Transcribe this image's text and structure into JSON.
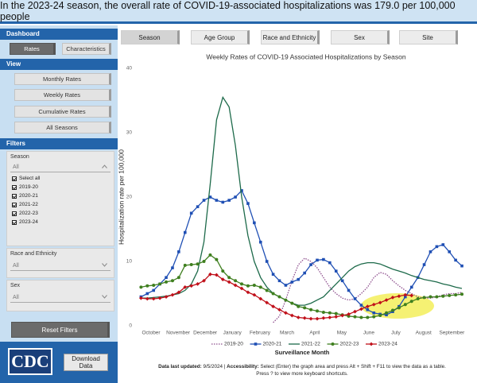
{
  "banner": "In the 2023-24 season, the overall rate of COVID-19-associated hospitalizations was 179.0 per 100,000 people",
  "sidebar": {
    "dashboard": {
      "title": "Dashboard",
      "buttons": [
        "Rates",
        "Characteristics"
      ]
    },
    "view": {
      "title": "View",
      "buttons": [
        "Monthly Rates",
        "Weekly Rates",
        "Cumulative Rates",
        "All Seasons"
      ]
    },
    "filters": {
      "title": "Filters",
      "season": {
        "label": "Season",
        "selected": "All",
        "options": [
          "Select all",
          "2019-20",
          "2020-21",
          "2021-22",
          "2022-23",
          "2023-24"
        ]
      },
      "race": {
        "label": "Race and Ethnicity",
        "selected": "All"
      },
      "sex": {
        "label": "Sex",
        "selected": "All"
      },
      "reset": "Reset Filters"
    },
    "logo": "CDC",
    "download": "Download Data"
  },
  "tabs": [
    "Season",
    "Age Group",
    "Race and Ethnicity",
    "Sex",
    "Site"
  ],
  "chart_data": {
    "type": "line",
    "title": "Weekly Rates of COVID-19 Associated Hospitalizations by Season",
    "y_label": "Hospitalization rate per 100,000",
    "x_label": "Surveillance Month",
    "xlim": [
      -0.3,
      51.5
    ],
    "xticks": [
      {
        "value": 1.6,
        "label": "October"
      },
      {
        "value": 5.9,
        "label": "November"
      },
      {
        "value": 10.2,
        "label": "December"
      },
      {
        "value": 14.5,
        "label": "January"
      },
      {
        "value": 18.9,
        "label": "February"
      },
      {
        "value": 23.2,
        "label": "March"
      },
      {
        "value": 27.6,
        "label": "April"
      },
      {
        "value": 31.9,
        "label": "May"
      },
      {
        "value": 36.2,
        "label": "June"
      },
      {
        "value": 40.5,
        "label": "July"
      },
      {
        "value": 44.9,
        "label": "August"
      },
      {
        "value": 49.4,
        "label": "September"
      }
    ],
    "ylim": [
      0,
      40
    ],
    "yticks": [
      0,
      10,
      20,
      30,
      40
    ],
    "series": [
      {
        "name": "2019-20",
        "color": "#8e4f8e",
        "line_style": "dotted",
        "values": [
          null,
          null,
          null,
          null,
          null,
          null,
          null,
          null,
          null,
          null,
          null,
          null,
          null,
          null,
          null,
          null,
          null,
          null,
          null,
          null,
          null,
          0.5,
          1.5,
          4,
          7,
          9.5,
          10.5,
          10,
          9,
          7.5,
          6,
          5,
          4.3,
          4,
          4.2,
          5,
          6,
          7.5,
          8.3,
          8,
          7,
          6.2,
          5.5,
          5,
          4.5,
          4.3,
          4.3,
          4.5,
          4.8,
          5,
          5,
          5.2
        ]
      },
      {
        "name": "2020-21",
        "color": "#1f4fb4",
        "marker": "square",
        "values": [
          4.5,
          5,
          5.5,
          6.5,
          7.5,
          9,
          11.5,
          14.5,
          17.5,
          18.5,
          19.5,
          20,
          19.5,
          19.2,
          19.5,
          20,
          21,
          19,
          16,
          13,
          10,
          8,
          7,
          6.3,
          6.8,
          7.2,
          8.2,
          9.5,
          10.2,
          10.3,
          9.8,
          8.5,
          7,
          5.5,
          4.2,
          3.2,
          2.5,
          2,
          1.8,
          1.7,
          2.2,
          3,
          4.5,
          6,
          7.5,
          9.5,
          11.5,
          12.3,
          12.6,
          11.5,
          10.2,
          9.3
        ]
      },
      {
        "name": "2021-22",
        "color": "#1d6a4a",
        "values": [
          4.3,
          4.3,
          4.4,
          4.5,
          4.6,
          4.8,
          5,
          5.5,
          6.5,
          8.5,
          13,
          22,
          32,
          35.5,
          34,
          28,
          20,
          14,
          10,
          7.5,
          6,
          5,
          4.5,
          4,
          3.5,
          3.2,
          3.2,
          3.5,
          4,
          4.5,
          5.5,
          6.5,
          7.5,
          8.5,
          9.2,
          9.6,
          9.8,
          9.8,
          9.6,
          9.2,
          8.8,
          8.5,
          8.2,
          7.8,
          7.5,
          7.2,
          7,
          6.8,
          6.5,
          6.3,
          6,
          5.8
        ]
      },
      {
        "name": "2022-23",
        "color": "#3f7f1f",
        "marker": "circle",
        "values": [
          6,
          6.2,
          6.3,
          6.5,
          6.8,
          7,
          7.5,
          9.4,
          9.5,
          9.6,
          10,
          11,
          10.3,
          8.5,
          7.5,
          7,
          6.5,
          6.2,
          6.3,
          6,
          5.5,
          5,
          4.5,
          4,
          3.5,
          3,
          2.8,
          2.5,
          2.3,
          2.1,
          2,
          1.9,
          1.7,
          1.5,
          1.4,
          1.3,
          1.3,
          1.4,
          1.6,
          2,
          2.4,
          2.8,
          3.3,
          3.8,
          4.2,
          4.4,
          4.5,
          4.5,
          4.6,
          4.7,
          4.8,
          4.9
        ]
      },
      {
        "name": "2023-24",
        "color": "#c0101a",
        "marker": "diamond",
        "values": [
          4.3,
          4.2,
          4.2,
          4.3,
          4.5,
          4.8,
          5.2,
          6,
          6.2,
          6.5,
          7,
          8,
          7.9,
          7.2,
          6.8,
          6.3,
          5.8,
          5.2,
          4.8,
          4.2,
          3.6,
          3,
          2.5,
          2,
          1.6,
          1.3,
          1.2,
          1.1,
          1.1,
          1.2,
          1.3,
          1.4,
          1.6,
          1.8,
          2.2,
          2.6,
          3,
          3.3,
          3.6,
          4,
          4.4,
          4.6,
          4.8,
          4.7,
          null,
          null,
          null,
          null,
          null,
          null,
          null,
          null
        ]
      }
    ]
  },
  "footer": {
    "updated_label": "Data last updated:",
    "updated": "9/5/2024 |",
    "access_label": "Accessibility:",
    "access": "Select (Enter) the graph area and press Alt + Shift + F11 to view the data as a table.",
    "shortcuts": "Press ? to view more keyboard shortcuts."
  }
}
